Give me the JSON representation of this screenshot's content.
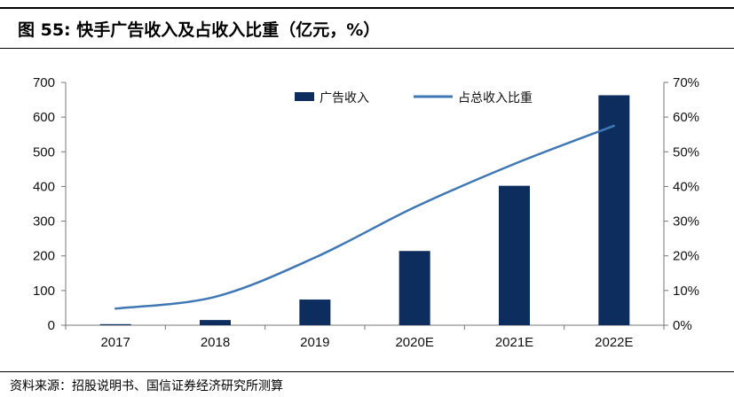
{
  "title": "图 55:  快手广告收入及占收入比重（亿元，%）",
  "source": "资料来源：招股说明书、国信证券经济研究所测算",
  "colors": {
    "bar": "#0c2d5e",
    "line": "#3f78b4",
    "axis": "#777777"
  },
  "chart_data": {
    "type": "bar+line",
    "categories": [
      "2017",
      "2018",
      "2019",
      "2020E",
      "2021E",
      "2022E"
    ],
    "series": [
      {
        "name": "广告收入",
        "type": "bar",
        "axis": "left",
        "values": [
          3,
          15,
          74,
          214,
          402,
          663
        ]
      },
      {
        "name": "占总收入比重",
        "type": "line",
        "axis": "right",
        "values": [
          4.8,
          8.2,
          19.5,
          34.0,
          46.5,
          57.5
        ]
      }
    ],
    "y_left": {
      "min": 0,
      "max": 700,
      "ticks": [
        "0",
        "100",
        "200",
        "300",
        "400",
        "500",
        "600",
        "700"
      ]
    },
    "y_right": {
      "min": 0,
      "max": 70,
      "ticks": [
        "0%",
        "10%",
        "20%",
        "30%",
        "40%",
        "50%",
        "60%",
        "70%"
      ]
    },
    "legend_position": "top",
    "grid": false
  }
}
